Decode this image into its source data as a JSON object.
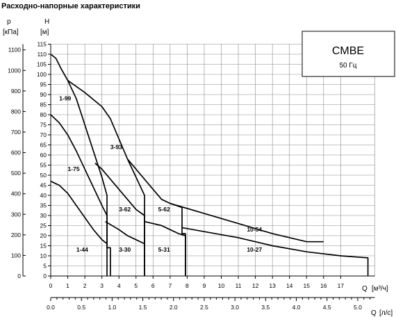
{
  "chart_data": {
    "type": "line",
    "title": "Расходно-напорные характеристики",
    "y_left_label": "p",
    "y_left_unit": "[кПа]",
    "y_label": "H",
    "y_unit": "[м]",
    "x_label": "Q",
    "x_unit": "[м³/ч]",
    "x2_label": "Q",
    "x2_unit": "[л/с]",
    "model_box": {
      "name": "CMBE",
      "frequency": "50 Гц"
    },
    "xlim": [
      0,
      19
    ],
    "ylim": [
      0,
      115
    ],
    "x_ticks": [
      0,
      1,
      2,
      3,
      4,
      5,
      6,
      7,
      8,
      9,
      10,
      11,
      12,
      13,
      14,
      15,
      16,
      17
    ],
    "y_ticks": [
      0,
      5,
      10,
      15,
      20,
      25,
      30,
      35,
      40,
      45,
      50,
      55,
      60,
      65,
      70,
      75,
      80,
      85,
      90,
      95,
      100,
      105,
      110,
      115
    ],
    "p_ticks": [
      0,
      100,
      200,
      300,
      400,
      500,
      600,
      700,
      800,
      900,
      1000,
      1100
    ],
    "x2_ticks": [
      0.0,
      0.5,
      1.0,
      1.5,
      2.0,
      2.5,
      3.0,
      3.5,
      4.0,
      4.5,
      5.0
    ],
    "grid": true,
    "series": [
      {
        "name": "1-99",
        "points": [
          [
            0,
            110
          ],
          [
            0.3,
            108
          ],
          [
            0.6,
            103
          ],
          [
            1,
            97
          ],
          [
            1.5,
            88
          ],
          [
            2,
            75
          ],
          [
            2.5,
            62
          ],
          [
            3,
            49
          ],
          [
            3.3,
            40
          ],
          [
            3.3,
            14
          ],
          [
            3.5,
            14
          ],
          [
            3.5,
            0
          ]
        ]
      },
      {
        "name": "1-75",
        "points": [
          [
            0,
            80
          ],
          [
            0.5,
            76
          ],
          [
            1,
            70
          ],
          [
            1.5,
            62
          ],
          [
            2,
            53
          ],
          [
            2.5,
            44
          ],
          [
            3,
            35
          ],
          [
            3.3,
            30
          ],
          [
            3.3,
            0
          ]
        ]
      },
      {
        "name": "1-44",
        "points": [
          [
            0,
            47
          ],
          [
            0.5,
            45
          ],
          [
            1,
            41
          ],
          [
            1.5,
            35
          ],
          [
            2,
            29
          ],
          [
            2.5,
            23
          ],
          [
            3,
            18
          ],
          [
            3.3,
            16
          ]
        ]
      },
      {
        "name": "3-93",
        "points": [
          [
            1,
            97
          ],
          [
            2,
            91
          ],
          [
            3,
            84
          ],
          [
            3.5,
            78
          ],
          [
            4,
            68
          ],
          [
            4.5,
            58
          ],
          [
            5,
            49
          ],
          [
            5.5,
            40
          ],
          [
            5.5,
            0
          ]
        ]
      },
      {
        "name": "3-62",
        "points": [
          [
            2.6,
            56
          ],
          [
            3,
            53
          ],
          [
            3.5,
            48
          ],
          [
            4,
            43
          ],
          [
            4.5,
            38
          ],
          [
            5,
            33
          ],
          [
            5.5,
            30
          ],
          [
            5.5,
            16
          ],
          [
            5.5,
            0
          ]
        ]
      },
      {
        "name": "3-30",
        "points": [
          [
            3.2,
            27
          ],
          [
            4,
            23
          ],
          [
            4.5,
            20
          ],
          [
            5,
            18
          ],
          [
            5.5,
            16
          ]
        ]
      },
      {
        "name": "5-62",
        "points": [
          [
            4.5,
            58
          ],
          [
            5,
            53
          ],
          [
            5.5,
            48
          ],
          [
            6,
            43
          ],
          [
            6.5,
            38
          ],
          [
            7,
            36
          ],
          [
            7.7,
            34
          ],
          [
            7.7,
            21
          ],
          [
            7.9,
            21
          ],
          [
            7.9,
            0
          ]
        ]
      },
      {
        "name": "5-31",
        "points": [
          [
            5.5,
            27
          ],
          [
            6,
            26
          ],
          [
            6.5,
            25
          ],
          [
            7,
            23
          ],
          [
            7.5,
            21
          ],
          [
            7.9,
            20
          ],
          [
            7.9,
            0
          ]
        ]
      },
      {
        "name": "10-54",
        "points": [
          [
            7,
            36
          ],
          [
            9,
            31
          ],
          [
            11,
            26
          ],
          [
            13,
            21
          ],
          [
            15,
            17
          ],
          [
            16,
            17
          ]
        ]
      },
      {
        "name": "10-27",
        "points": [
          [
            7.7,
            24
          ],
          [
            9,
            22
          ],
          [
            11,
            19
          ],
          [
            13,
            15
          ],
          [
            15,
            12
          ],
          [
            17,
            10
          ],
          [
            18.6,
            9
          ],
          [
            18.6,
            0
          ]
        ]
      }
    ],
    "curve_labels": [
      {
        "text": "1-99",
        "x": 0.5,
        "y": 87
      },
      {
        "text": "1-75",
        "x": 1.0,
        "y": 52
      },
      {
        "text": "1-44",
        "x": 1.5,
        "y": 12
      },
      {
        "text": "3-93",
        "x": 3.5,
        "y": 63
      },
      {
        "text": "3-62",
        "x": 4.0,
        "y": 32
      },
      {
        "text": "3-30",
        "x": 4.0,
        "y": 12
      },
      {
        "text": "5-62",
        "x": 6.3,
        "y": 32
      },
      {
        "text": "5-31",
        "x": 6.3,
        "y": 12
      },
      {
        "text": "10-54",
        "x": 11.5,
        "y": 22
      },
      {
        "text": "10-27",
        "x": 11.5,
        "y": 12
      }
    ]
  }
}
